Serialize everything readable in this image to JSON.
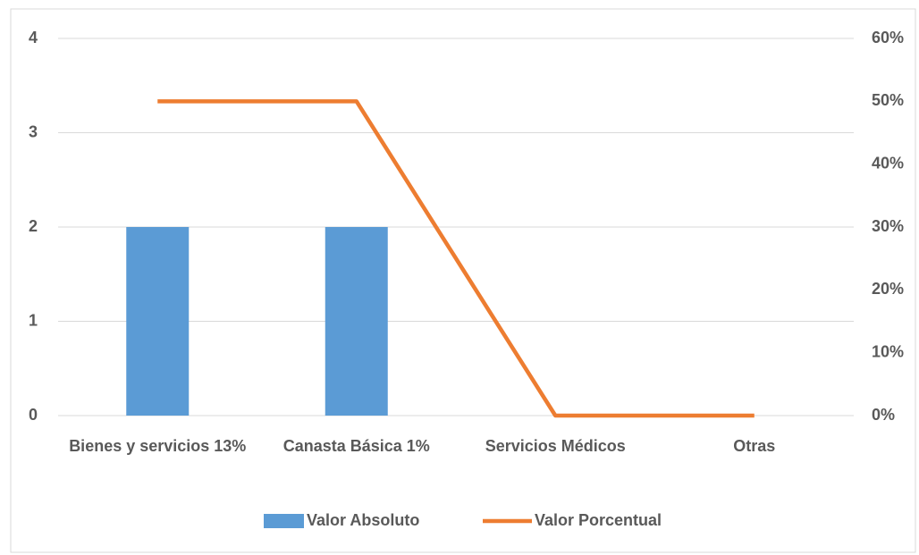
{
  "chart_data": {
    "type": "combo",
    "categories": [
      "Bienes y servicios 13%",
      "Canasta Básica 1%",
      "Servicios Médicos",
      "Otras"
    ],
    "series": [
      {
        "name": "Valor Absoluto",
        "type": "bar",
        "color": "#5b9bd5",
        "values": [
          2,
          2,
          0,
          0
        ]
      },
      {
        "name": "Valor Porcentual",
        "type": "line",
        "axis": "y2",
        "color": "#ed7d31",
        "values": [
          50,
          50,
          0,
          0
        ]
      }
    ],
    "ylim": [
      0,
      4
    ],
    "yticks": [
      0,
      1,
      2,
      3,
      4
    ],
    "y2lim": [
      0,
      60
    ],
    "y2ticks": [
      {
        "value": 0,
        "label": "0%"
      },
      {
        "value": 10,
        "label": "10%"
      },
      {
        "value": 20,
        "label": "20%"
      },
      {
        "value": 30,
        "label": "30%"
      },
      {
        "value": 40,
        "label": "40%"
      },
      {
        "value": 50,
        "label": "50%"
      },
      {
        "value": 60,
        "label": "60%"
      }
    ],
    "grid": true,
    "legend": "bottom"
  }
}
